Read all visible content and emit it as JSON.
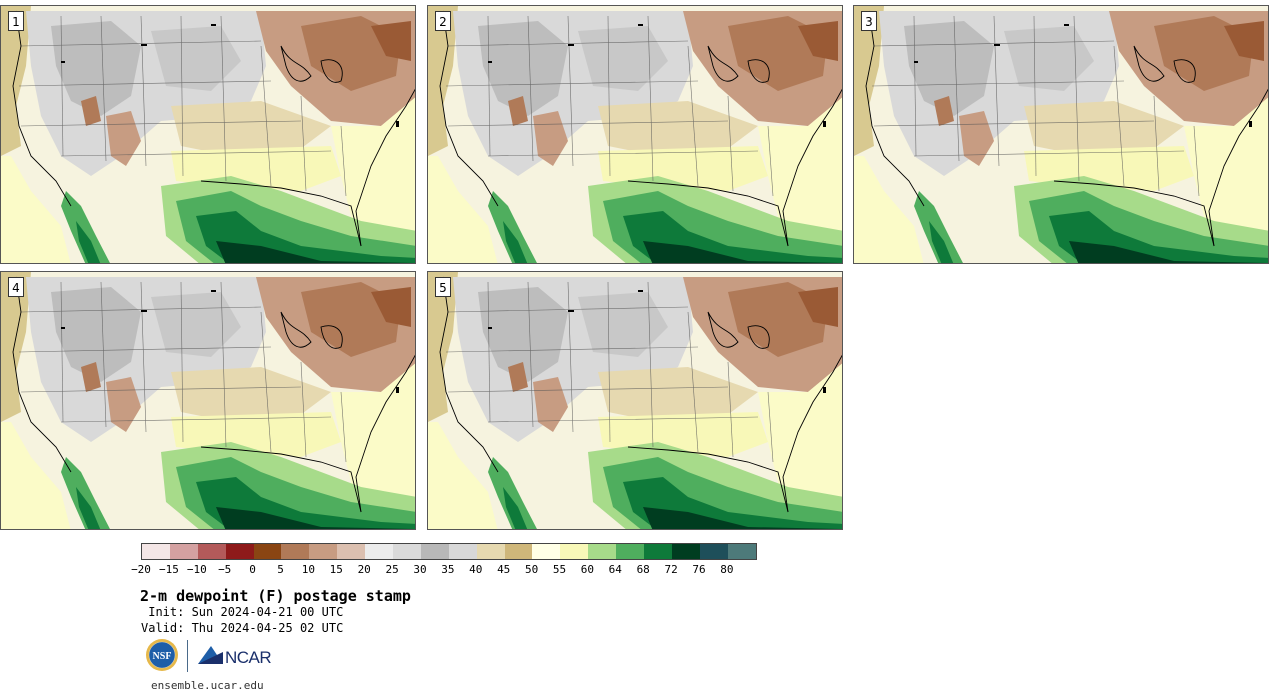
{
  "panels": [
    {
      "label": "1"
    },
    {
      "label": "2"
    },
    {
      "label": "3"
    },
    {
      "label": "4"
    },
    {
      "label": "5"
    }
  ],
  "colorbar": {
    "colors": [
      "#f4e6e6",
      "#d4a1a1",
      "#b35a5a",
      "#8e1a1a",
      "#8a4513",
      "#b07a58",
      "#c79c82",
      "#dcc0b0",
      "#ececec",
      "#dadada",
      "#b8b8b8",
      "#d8d8d8",
      "#e6d9b0",
      "#cfb77a",
      "#ffffe6",
      "#f8f8b8",
      "#a7db8a",
      "#4fae5e",
      "#0e7a3a",
      "#003d20",
      "#1e4f5a",
      "#4d7a7a"
    ],
    "ticks": [
      "−20",
      "−15",
      "−10",
      "−5",
      "0",
      "5",
      "10",
      "15",
      "20",
      "25",
      "30",
      "35",
      "40",
      "45",
      "50",
      "55",
      "60",
      "64",
      "68",
      "72",
      "76",
      "80"
    ]
  },
  "title": "2-m dewpoint (F) postage stamp",
  "init": " Init: Sun 2024-04-21 00 UTC",
  "valid": "Valid: Thu 2024-04-25 02 UTC",
  "logos": {
    "nsf": "NSF",
    "ncar": "NCAR"
  },
  "url": "ensemble.ucar.edu"
}
